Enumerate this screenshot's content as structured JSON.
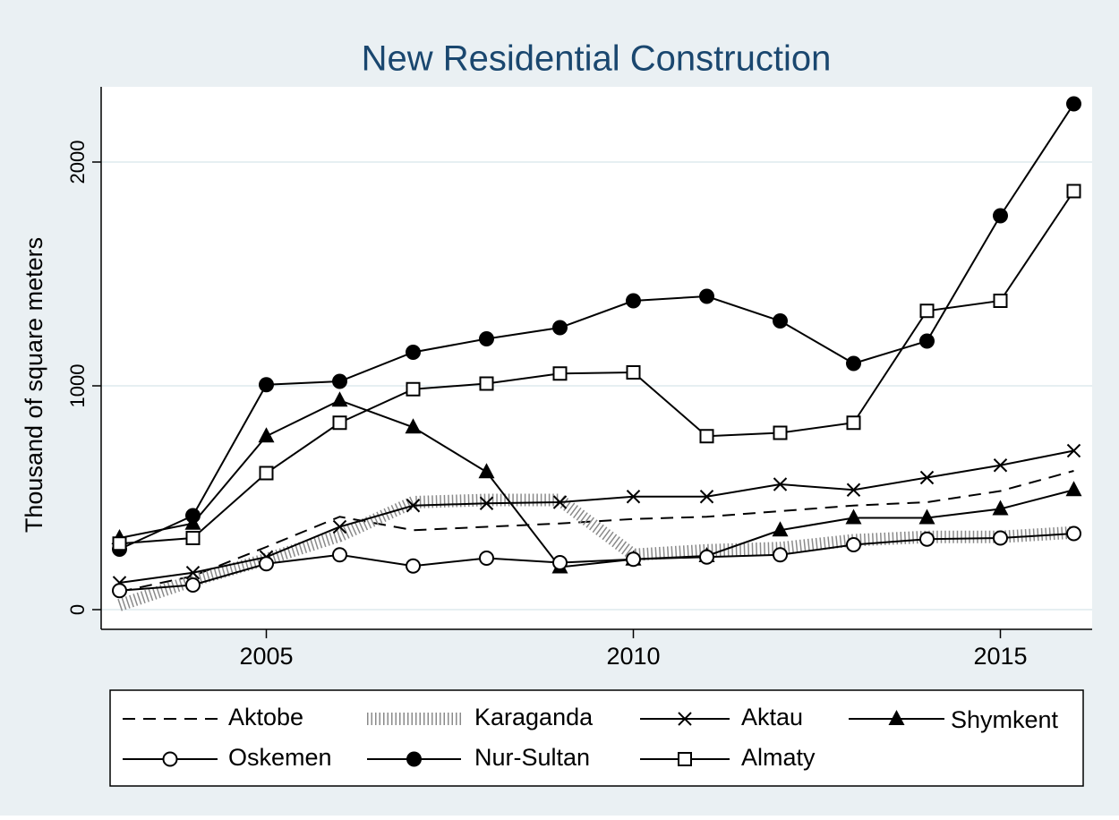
{
  "chart_data": {
    "type": "line",
    "title": "New Residential Construction",
    "y_label": "Thousand of square meters",
    "x": [
      2003,
      2004,
      2005,
      2006,
      2007,
      2008,
      2009,
      2010,
      2011,
      2012,
      2013,
      2014,
      2015,
      2016
    ],
    "xlim": [
      2002.75,
      2016.25
    ],
    "xticks": [
      2005,
      2010,
      2015
    ],
    "ylim": [
      -88,
      2336
    ],
    "yticks": [
      0,
      1000,
      2000
    ],
    "grid": true,
    "legend": "bottom",
    "series": [
      {
        "name": "Aktobe",
        "color": "#000000",
        "style": "dash",
        "marker": "none",
        "values": [
          80,
          150,
          280,
          415,
          355,
          370,
          385,
          405,
          415,
          440,
          465,
          480,
          530,
          620
        ]
      },
      {
        "name": "Karaganda",
        "color": "#8a8a8a",
        "style": "hatch",
        "marker": "none",
        "values": [
          20,
          130,
          225,
          330,
          480,
          490,
          490,
          245,
          265,
          275,
          310,
          325,
          325,
          345
        ]
      },
      {
        "name": "Aktau",
        "color": "#000000",
        "style": "solid",
        "marker": "x",
        "values": [
          120,
          165,
          235,
          370,
          465,
          475,
          480,
          505,
          505,
          560,
          535,
          590,
          645,
          710
        ]
      },
      {
        "name": "Shymkent",
        "color": "#000000",
        "style": "solid",
        "marker": "triangle",
        "values": [
          320,
          385,
          775,
          935,
          815,
          615,
          190,
          225,
          240,
          355,
          410,
          410,
          450,
          535
        ]
      },
      {
        "name": "Oskemen",
        "color": "#000000",
        "style": "solid",
        "marker": "circle-open",
        "values": [
          85,
          110,
          205,
          245,
          195,
          230,
          210,
          225,
          235,
          245,
          290,
          315,
          320,
          340
        ]
      },
      {
        "name": "Nur-Sultan",
        "color": "#000000",
        "style": "solid",
        "marker": "circle",
        "values": [
          270,
          420,
          1005,
          1020,
          1150,
          1210,
          1260,
          1380,
          1400,
          1290,
          1100,
          1200,
          1760,
          2260
        ]
      },
      {
        "name": "Almaty",
        "color": "#000000",
        "style": "solid",
        "marker": "square-open",
        "values": [
          295,
          320,
          610,
          835,
          985,
          1010,
          1055,
          1060,
          775,
          790,
          835,
          1335,
          1380,
          1870
        ]
      }
    ]
  }
}
